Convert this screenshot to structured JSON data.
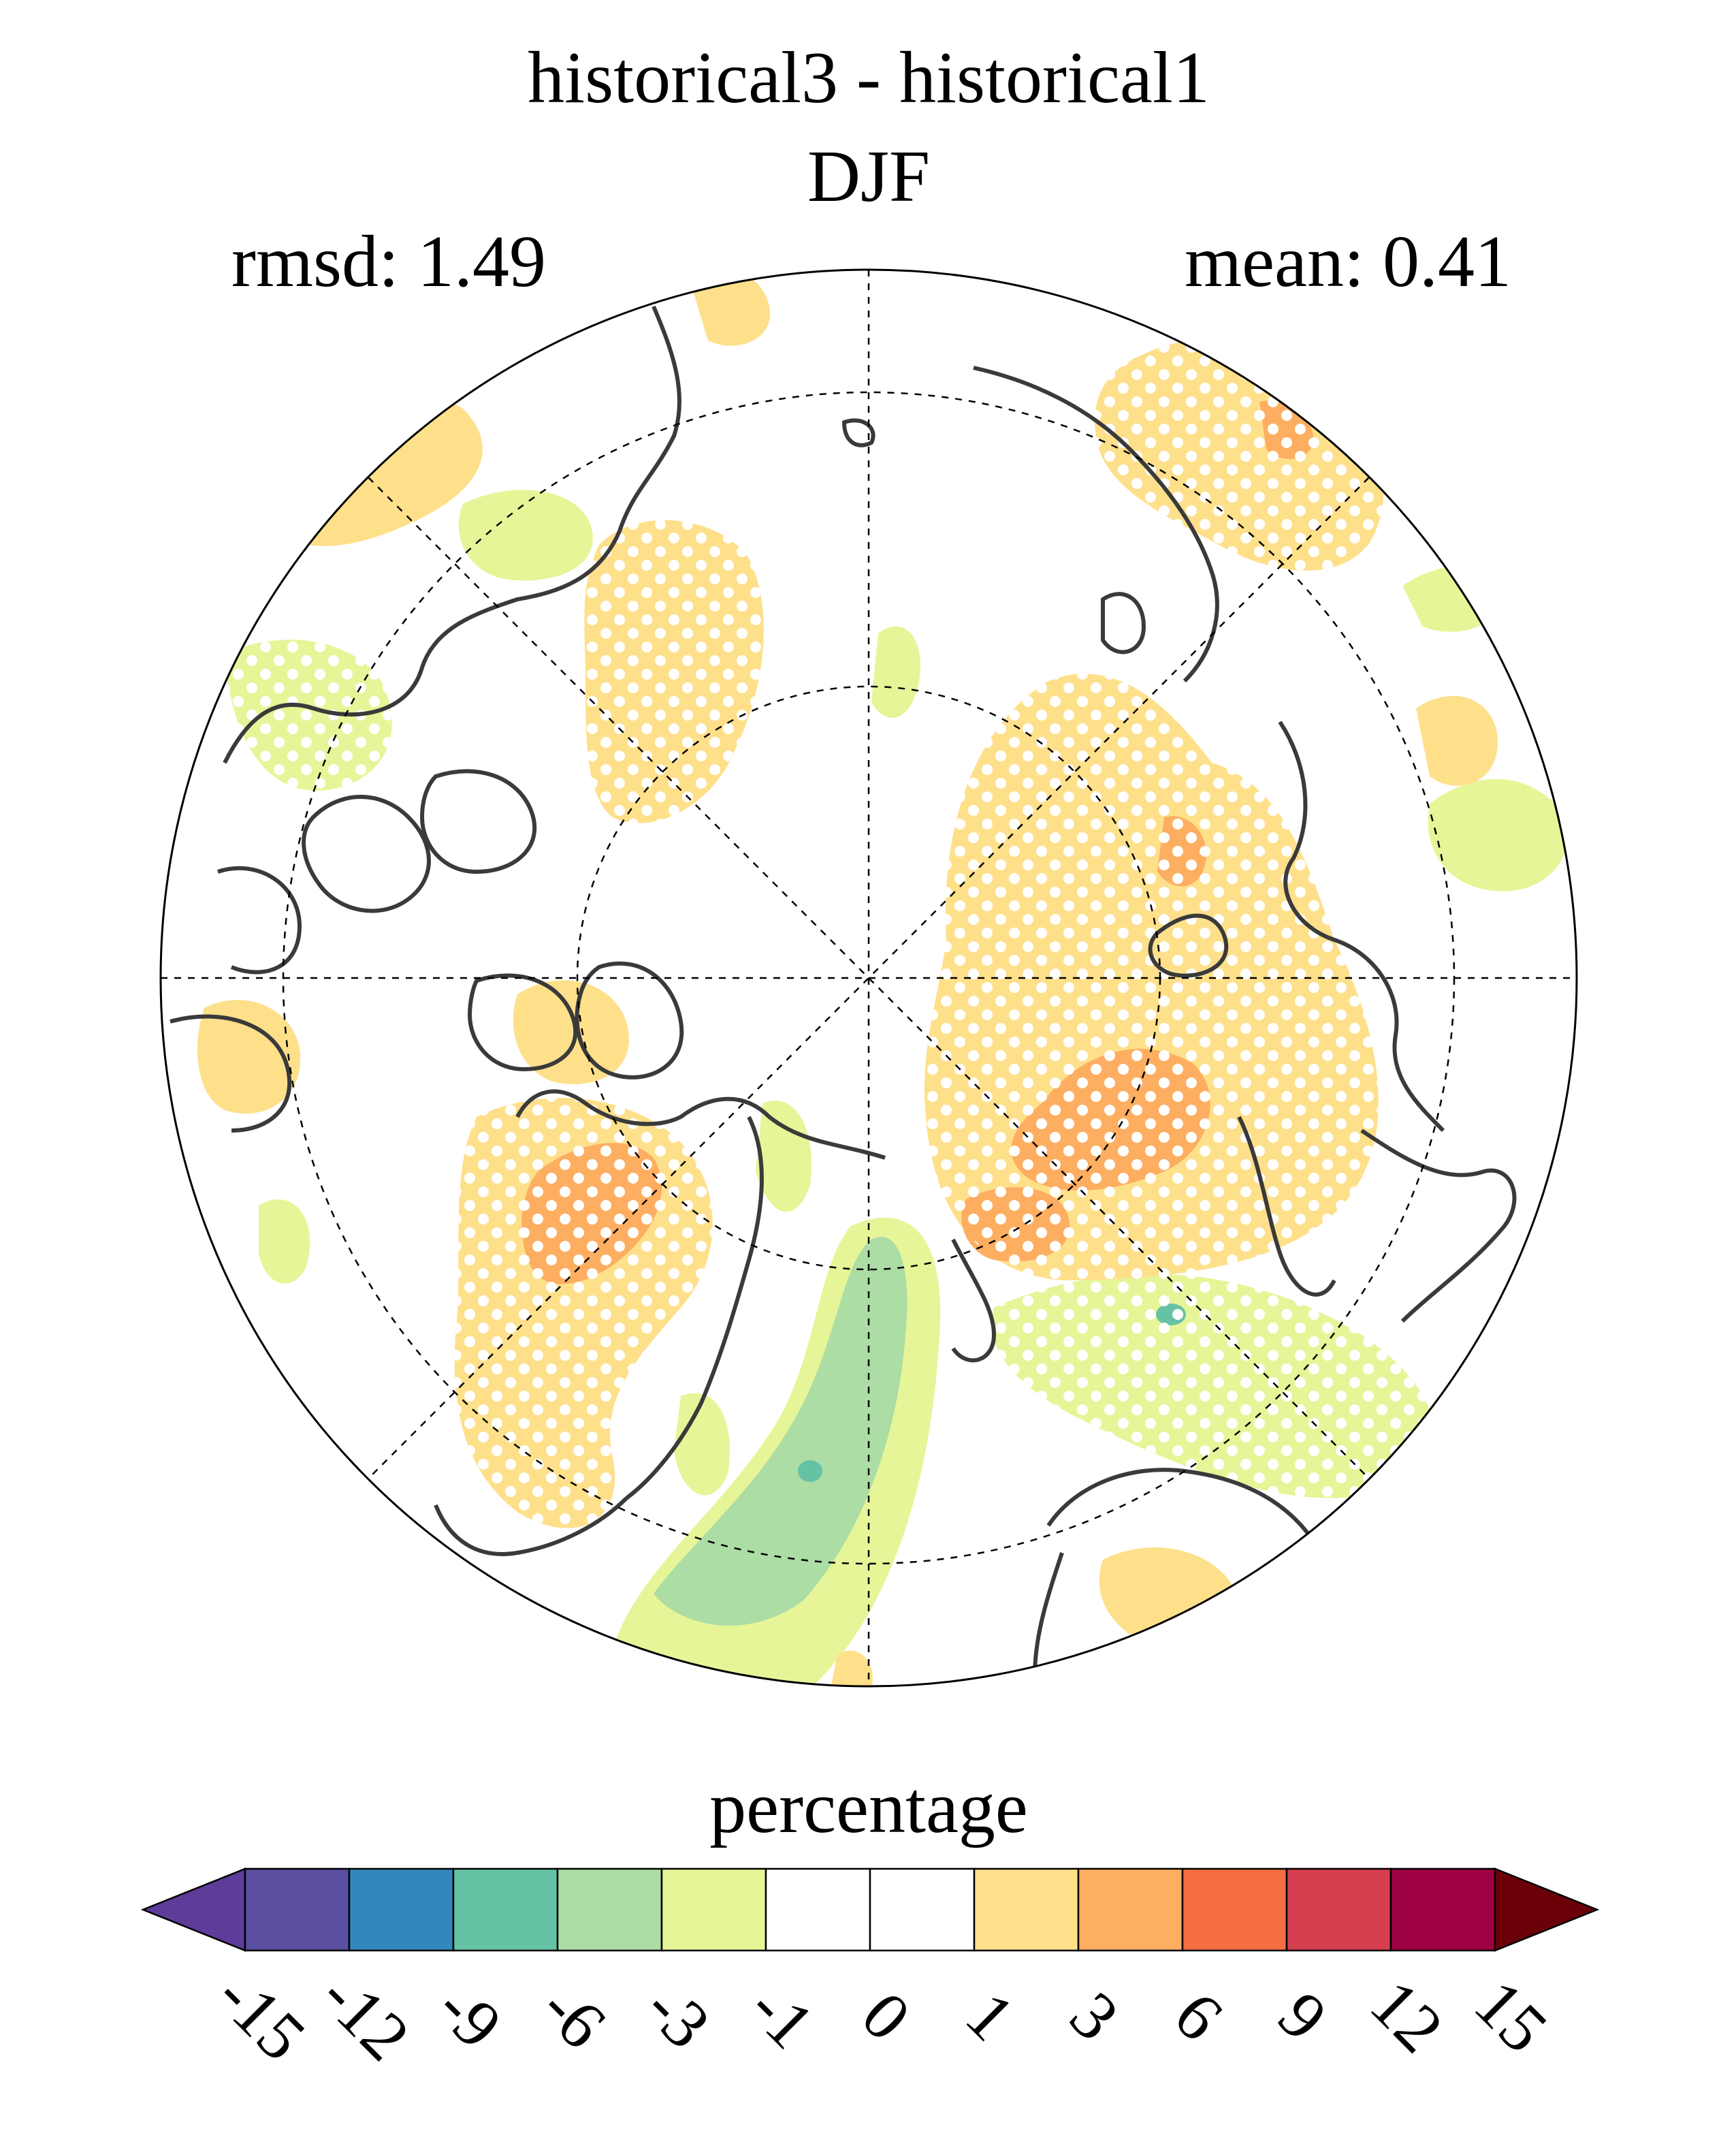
{
  "header": {
    "title": "historical3 - historical1",
    "season": "DJF",
    "rmsd_label": "rmsd: 1.49",
    "mean_label": "mean: 0.41"
  },
  "colorbar": {
    "title": "percentage",
    "levels": [
      "-15",
      "-12",
      "-9",
      "-6",
      "-3",
      "-1",
      "0",
      "1",
      "3",
      "6",
      "9",
      "12",
      "15"
    ],
    "colors": [
      "#5e3c99",
      "#5a4fa0",
      "#3288bd",
      "#66c2a5",
      "#abdda4",
      "#e6f598",
      "#ffffff",
      "#ffffff",
      "#fee08b",
      "#fdae61",
      "#f46d43",
      "#d53e4f",
      "#9e0142",
      "#6b0009"
    ],
    "extend": "both"
  },
  "map": {
    "projection": "north-polar-stereographic",
    "graticule": "dashed",
    "stippling": "significance-dots",
    "land_outline_color": "#3a3a3a"
  }
}
